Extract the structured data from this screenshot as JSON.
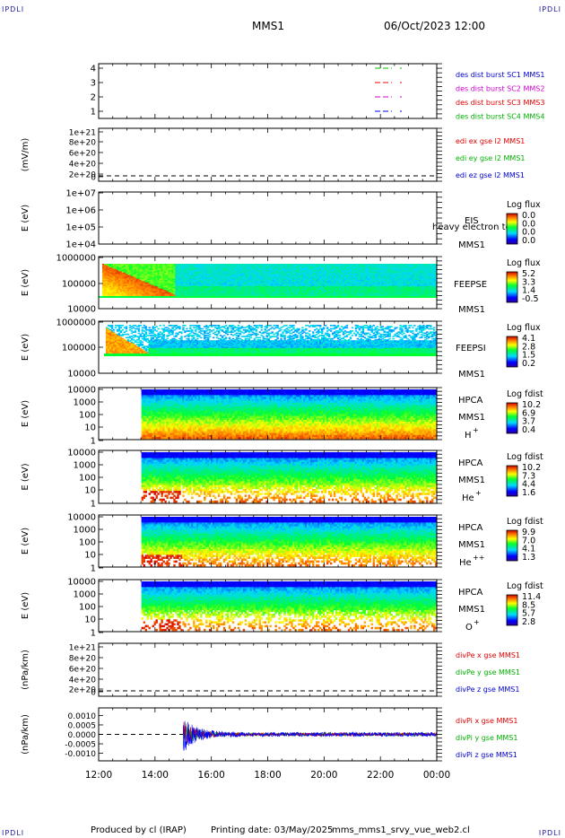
{
  "header": {
    "corner_left_top": "IPDLI",
    "corner_right_top": "IPDLI",
    "corner_left_bottom": "IPDLI",
    "corner_right_bottom": "IPDLI",
    "spacecraft": "MMS1",
    "date": "06/Oct/2023 12:00"
  },
  "footer": {
    "produced_by": "Produced by cl (IRAP)",
    "printing_date": "Printing date: 03/May/2025",
    "script": "mms_mms1_srvy_vue_web2.cl"
  },
  "time_axis": {
    "ticks": [
      "12:00",
      "14:00",
      "16:00",
      "18:00",
      "20:00",
      "22:00",
      "00:00"
    ],
    "start_hour": 12,
    "end_hour": 24
  },
  "colors": {
    "sc1": "#00c000",
    "sc2": "#ff0000",
    "sc3": "#d000d0",
    "sc4": "#0000ff",
    "edp_x": "#e00000",
    "edp_y": "#00c000",
    "edp_z": "#0000d0"
  },
  "panels": {
    "des": {
      "yticks": [
        "4",
        "3",
        "2",
        "1"
      ],
      "legend": [
        {
          "text": "des dist burst SC1 MMS1",
          "color": "#0000cc"
        },
        {
          "text": "des dist burst SC2 MMS2",
          "color": "#d000d0"
        },
        {
          "text": "des dist burst SC3 MMS3",
          "color": "#e00000"
        },
        {
          "text": "des dist burst SC4 MMS4",
          "color": "#00b000"
        }
      ]
    },
    "edi": {
      "ylabel": "(mV/m)",
      "yticks": [
        "1e+21",
        "8e+20",
        "6e+20",
        "4e+20",
        "2e+20",
        "0"
      ],
      "legend": [
        {
          "text": "edi ex gse l2 MMS1",
          "color": "#e00000"
        },
        {
          "text": "edi ey gse l2 MMS1",
          "color": "#00b000"
        },
        {
          "text": "edi ez gse l2 MMS1",
          "color": "#0000cc"
        }
      ]
    },
    "eis": {
      "ylabel": "E (eV)",
      "yticks": [
        "1e+07",
        "1e+06",
        "1e+05",
        "1e+04"
      ],
      "name": "EIS",
      "sc": "MMS1",
      "overlay": "heavy electron to",
      "cb_title": "Log flux",
      "cb_ticks": [
        "0.0",
        "0.0",
        "0.0",
        "0.0"
      ]
    },
    "feepse": {
      "ylabel": "E (eV)",
      "yticks": [
        "1000000",
        "100000",
        "10000"
      ],
      "name": "FEEPSE",
      "sc": "MMS1",
      "cb_title": "Log flux",
      "cb_ticks": [
        "5.2",
        "3.3",
        "1.4",
        "-0.5"
      ]
    },
    "feepsi": {
      "ylabel": "E (eV)",
      "yticks": [
        "1000000",
        "100000",
        "10000"
      ],
      "name": "FEEPSI",
      "sc": "MMS1",
      "cb_title": "Log flux",
      "cb_ticks": [
        "4.1",
        "2.8",
        "1.5",
        "0.2"
      ]
    },
    "hpca_h": {
      "ylabel": "E (eV)",
      "yticks": [
        "10000",
        "1000",
        "100",
        "10",
        "1"
      ],
      "name": "HPCA",
      "sc": "MMS1",
      "species": "H",
      "sup": "+",
      "cb_title": "Log fdist",
      "cb_ticks": [
        "10.2",
        "6.9",
        "3.7",
        "0.4"
      ]
    },
    "hpca_he": {
      "ylabel": "E (eV)",
      "yticks": [
        "10000",
        "1000",
        "100",
        "10",
        "1"
      ],
      "name": "HPCA",
      "sc": "MMS1",
      "species": "He",
      "sup": "+",
      "cb_title": "Log fdist",
      "cb_ticks": [
        "10.2",
        "7.3",
        "4.4",
        "1.6"
      ]
    },
    "hpca_hepp": {
      "ylabel": "E (eV)",
      "yticks": [
        "10000",
        "1000",
        "100",
        "10",
        "1"
      ],
      "name": "HPCA",
      "sc": "MMS1",
      "species": "He",
      "sup": "++",
      "cb_title": "Log fdist",
      "cb_ticks": [
        "9.9",
        "7.0",
        "4.1",
        "1.3"
      ]
    },
    "hpca_o": {
      "ylabel": "E (eV)",
      "yticks": [
        "10000",
        "1000",
        "100",
        "10",
        "1"
      ],
      "name": "HPCA",
      "sc": "MMS1",
      "species": "O",
      "sup": "+",
      "cb_title": "Log fdist",
      "cb_ticks": [
        "11.4",
        "8.5",
        "5.7",
        "2.8"
      ]
    },
    "divpe": {
      "ylabel": "(nPa/km)",
      "yticks": [
        "1e+21",
        "8e+20",
        "6e+20",
        "4e+20",
        "2e+20",
        "0"
      ],
      "legend": [
        {
          "text": "divPe x gse MMS1",
          "color": "#e00000"
        },
        {
          "text": "divPe y gse MMS1",
          "color": "#00b000"
        },
        {
          "text": "divPe z gse MMS1",
          "color": "#0000cc"
        }
      ]
    },
    "divpi": {
      "ylabel": "(nPa/km)",
      "yticks": [
        "0.0010",
        "0.0005",
        "0.0000",
        "-0.0005",
        "-0.0010"
      ],
      "legend": [
        {
          "text": "divPi x gse MMS1",
          "color": "#e00000"
        },
        {
          "text": "divPi y gse MMS1",
          "color": "#00b000"
        },
        {
          "text": "divPi z gse MMS1",
          "color": "#0000cc"
        }
      ]
    }
  },
  "chart_data": {
    "type": "heatmap",
    "title": "MMS1 06/Oct/2023 12:00",
    "x_range_hours": [
      12,
      24
    ],
    "features": {
      "feeps_hot_plasma_end_hour": 14.7,
      "hpca_data_start_hour": 13.5,
      "divpi_spike_hour": 15.0,
      "divpi_spike_value": 0.0009
    },
    "divpi_ylim": [
      -0.0014,
      0.0014
    ]
  }
}
